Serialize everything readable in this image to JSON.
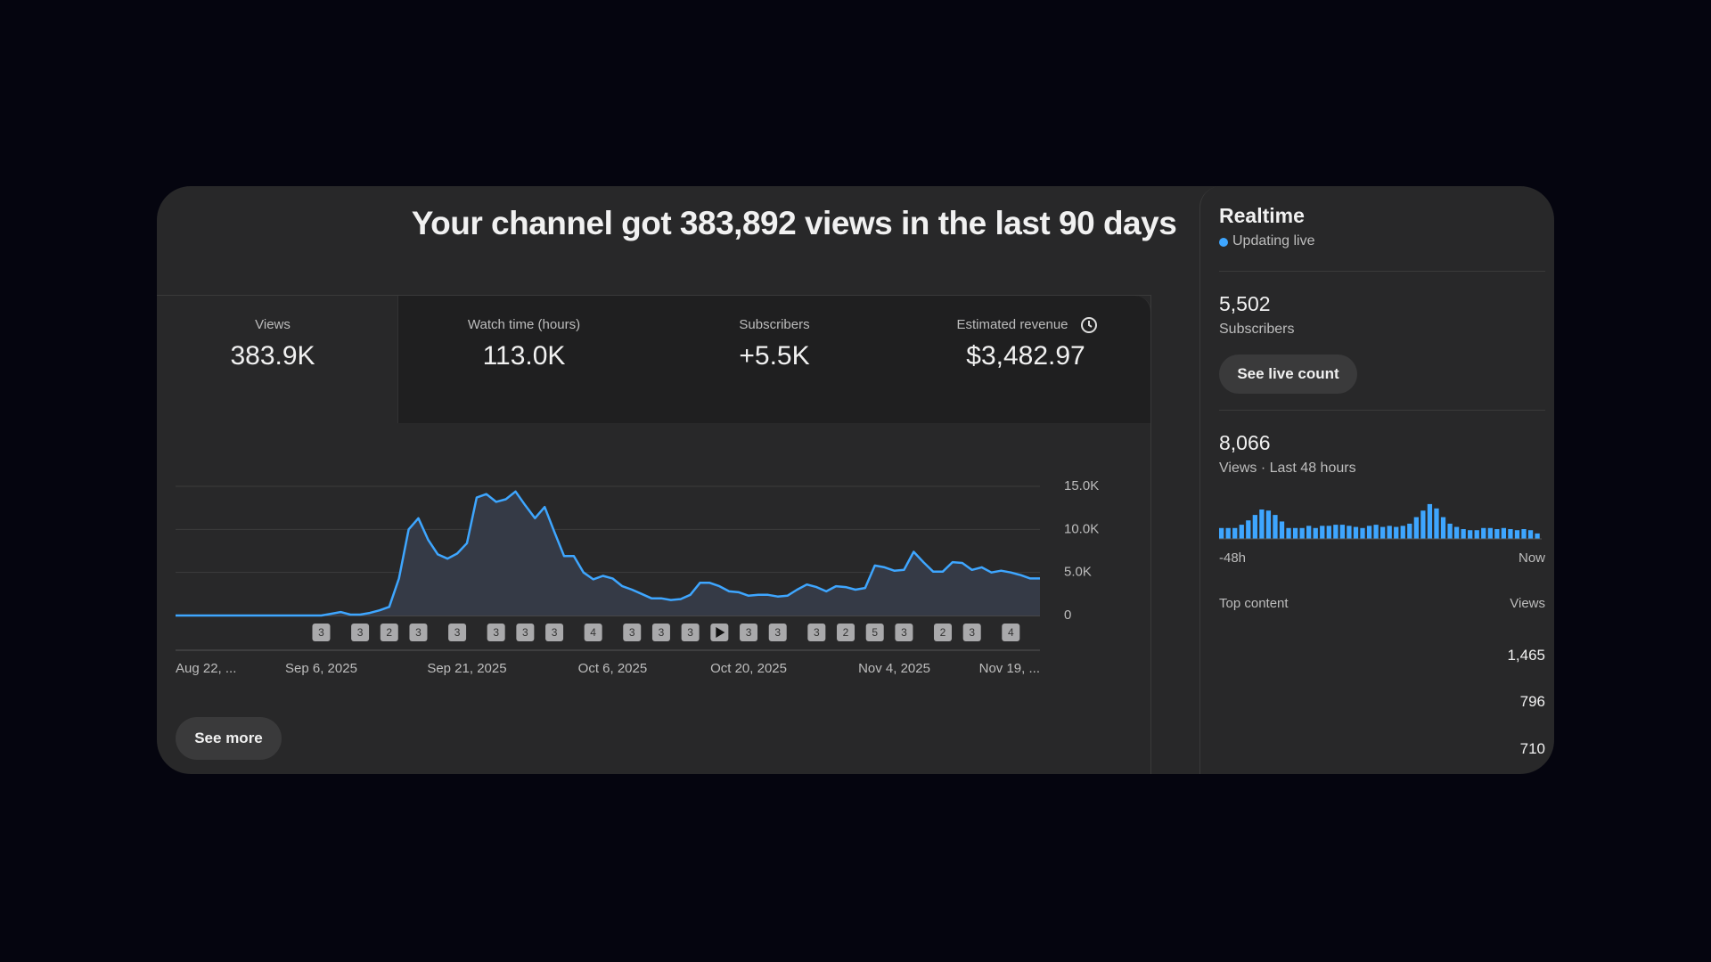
{
  "header": {
    "title": "Your channel got 383,892 views in the last 90 days"
  },
  "metrics": [
    {
      "label": "Views",
      "value": "383.9K"
    },
    {
      "label": "Watch time (hours)",
      "value": "113.0K"
    },
    {
      "label": "Subscribers",
      "value": "+5.5K"
    },
    {
      "label": "Estimated revenue",
      "value": "$3,482.97"
    }
  ],
  "chart_data": {
    "type": "line",
    "categories": [
      "Aug 22, ...",
      null,
      null,
      null,
      null,
      null,
      null,
      null,
      null,
      null,
      null,
      null,
      null,
      null,
      null,
      "Sep 6, 2025",
      null,
      null,
      null,
      null,
      null,
      null,
      null,
      null,
      null,
      null,
      null,
      null,
      null,
      null,
      "Sep 21, 2025",
      null,
      null,
      null,
      null,
      null,
      null,
      null,
      null,
      null,
      null,
      null,
      null,
      null,
      null,
      "Oct 6, 2025",
      null,
      null,
      null,
      null,
      null,
      null,
      null,
      null,
      null,
      null,
      null,
      null,
      null,
      "Oct 20, 2025",
      null,
      null,
      null,
      null,
      null,
      null,
      null,
      null,
      null,
      null,
      null,
      null,
      null,
      null,
      "Nov 4, 2025",
      null,
      null,
      null,
      null,
      null,
      null,
      null,
      null,
      null,
      null,
      null,
      null,
      null,
      null,
      "Nov 19, ..."
    ],
    "series": [
      {
        "name": "Views",
        "color": "#3ea6ff",
        "values": [
          0,
          0,
          0,
          0,
          0,
          0,
          0,
          0,
          0,
          0,
          0,
          0,
          0,
          0,
          0,
          0,
          200,
          400,
          100,
          100,
          300,
          600,
          1000,
          4300,
          10000,
          11300,
          8800,
          7100,
          6600,
          7200,
          8400,
          13700,
          14100,
          13200,
          13500,
          14400,
          12800,
          11300,
          12600,
          9700,
          6900,
          6900,
          5000,
          4200,
          4600,
          4300,
          3400,
          3000,
          2500,
          2000,
          2000,
          1800,
          1900,
          2400,
          3800,
          3800,
          3400,
          2800,
          2700,
          2300,
          2400,
          2400,
          2200,
          2300,
          3000,
          3600,
          3300,
          2800,
          3400,
          3300,
          3000,
          3200,
          5800,
          5600,
          5200,
          5300,
          7400,
          6200,
          5100,
          5100,
          6200,
          6100,
          5300,
          5600,
          5000,
          5200,
          5000,
          4700,
          4300,
          4300
        ]
      }
    ],
    "ylim": [
      0,
      15000
    ],
    "yticks": [
      0,
      {
        "value": 5000,
        "label": "5.0K"
      },
      {
        "value": 10000,
        "label": "10.0K"
      },
      {
        "value": 15000,
        "label": "15.0K"
      }
    ],
    "grid": true,
    "markers": [
      "3",
      "3",
      "2",
      "3",
      "3",
      "3",
      "3",
      "3",
      "4",
      "3",
      "3",
      "3",
      null,
      "3",
      "3",
      "3",
      "2",
      "5",
      "3",
      "2",
      "3",
      "4"
    ]
  },
  "see_more": "See more",
  "realtime": {
    "title": "Realtime",
    "status": "Updating live",
    "subscribers": "5,502",
    "subscribers_label": "Subscribers",
    "button": "See live count",
    "views": "8,066",
    "views_label": "Views · Last 48 hours",
    "bars": [
      130,
      130,
      130,
      169,
      221,
      286,
      351,
      338,
      286,
      208,
      130,
      130,
      130,
      156,
      130,
      156,
      156,
      169,
      169,
      156,
      143,
      130,
      156,
      169,
      143,
      156,
      143,
      156,
      182,
      260,
      338,
      416,
      364,
      260,
      182,
      143,
      117,
      104,
      104,
      130,
      130,
      117,
      130,
      117,
      104,
      117,
      104,
      65
    ],
    "bar_color": "#3ea6ff",
    "start_label": "-48h",
    "end_label": "Now",
    "top_content_label": "Top content",
    "top_content_views_label": "Views",
    "top_content": [
      "1,465",
      "796",
      "710"
    ]
  }
}
